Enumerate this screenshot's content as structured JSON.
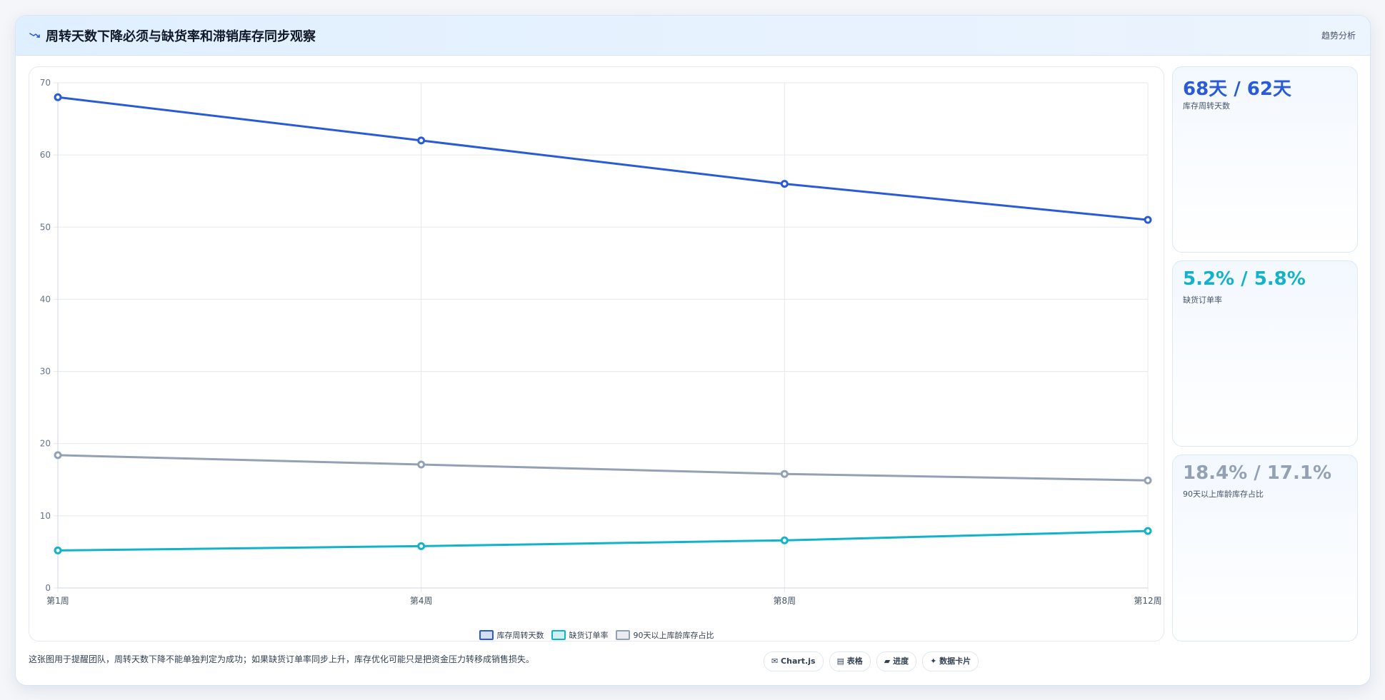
{
  "header": {
    "title": "周转天数下降必须与缺货率和滞销库存同步观察",
    "tag": "趋势分析",
    "icon": "trend-down-icon"
  },
  "chart_data": {
    "type": "line",
    "title": "",
    "categories": [
      "第1周",
      "第4周",
      "第8周",
      "第12周"
    ],
    "series": [
      {
        "name": "库存周转天数",
        "values": [
          68,
          62,
          56,
          51
        ],
        "color": "#2a5bd7"
      },
      {
        "name": "缺货订单率",
        "values": [
          5.2,
          5.8,
          6.6,
          7.9
        ],
        "color": "#12b3c9"
      },
      {
        "name": "90天以上库龄库存占比",
        "values": [
          18.4,
          17.1,
          15.8,
          14.9
        ],
        "color": "#94a1b5"
      }
    ],
    "ylim": [
      0,
      70
    ],
    "yticks": [
      0,
      10,
      20,
      30,
      40,
      50,
      60,
      70
    ],
    "grid": true,
    "legend_position": "bottom"
  },
  "cards": [
    {
      "value": "68天 / 62天",
      "label": "库存周转天数",
      "color": "#2a5bd7"
    },
    {
      "value": "5.2% / 5.8%",
      "label": "缺货订单率",
      "color": "#12b3c9"
    },
    {
      "value": "18.4% / 17.1%",
      "label": "90天以上库龄库存占比",
      "color": "#94a1b5"
    }
  ],
  "footnote": "这张图用于提醒团队，周转天数下降不能单独判定为成功；如果缺货订单率同步上升，库存优化可能只是把资金压力转移成销售损失。",
  "pills": [
    "✉ Chart.js",
    "▤ 表格",
    "▰ 进度",
    "✦ 数据卡片"
  ]
}
